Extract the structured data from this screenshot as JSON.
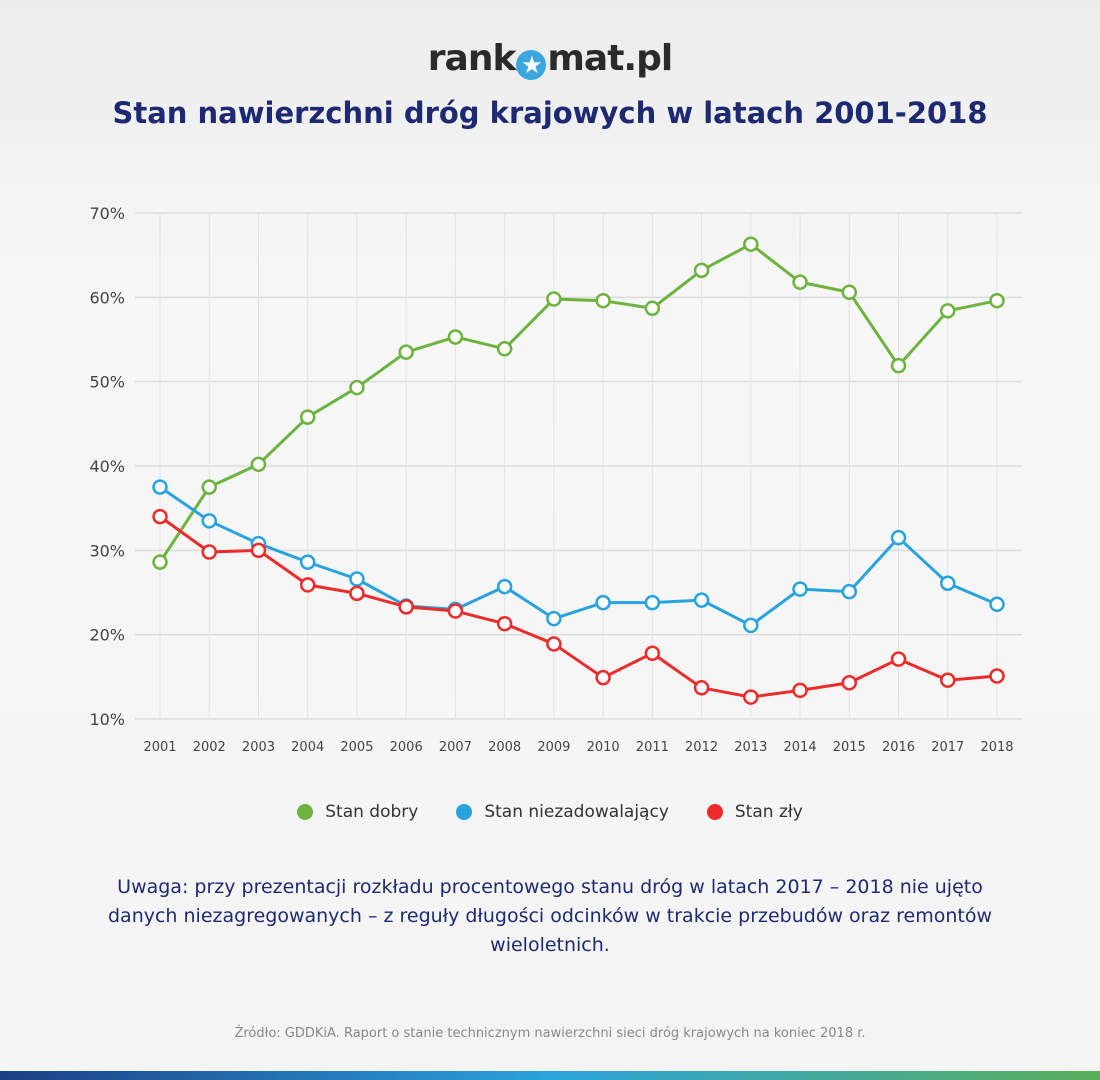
{
  "logo": {
    "text_left": "rank",
    "text_right": "mat.pl",
    "icon": "star-icon",
    "brand_color": "#3aa6dd"
  },
  "chart_data": {
    "type": "line",
    "title": "Stan nawierzchni dróg krajowych w latach 2001-2018",
    "x": [
      "2001",
      "2002",
      "2003",
      "2004",
      "2005",
      "2006",
      "2007",
      "2008",
      "2009",
      "2010",
      "2011",
      "2012",
      "2013",
      "2014",
      "2015",
      "2016",
      "2017",
      "2018"
    ],
    "ylim": [
      10,
      70
    ],
    "yticks": [
      10,
      20,
      30,
      40,
      50,
      60,
      70
    ],
    "ytick_labels": [
      "10%",
      "20%",
      "30%",
      "40%",
      "50%",
      "60%",
      "70%"
    ],
    "grid": true,
    "legend_placement": "bottom",
    "series": [
      {
        "name": "Stan dobry",
        "color": "#6db33f",
        "values": [
          28.6,
          37.5,
          40.2,
          45.8,
          49.3,
          53.5,
          55.3,
          53.9,
          59.8,
          59.6,
          58.7,
          63.2,
          66.3,
          61.8,
          60.6,
          51.9,
          58.4,
          59.6
        ]
      },
      {
        "name": "Stan niezadowalający",
        "color": "#29a3dd",
        "values": [
          37.5,
          33.5,
          30.8,
          28.6,
          26.6,
          23.4,
          23.0,
          25.7,
          21.9,
          23.8,
          23.8,
          24.1,
          21.1,
          25.4,
          25.1,
          31.5,
          26.1,
          23.6
        ]
      },
      {
        "name": "Stan zły",
        "color": "#ee2b2b",
        "values": [
          34.0,
          29.8,
          30.0,
          25.9,
          24.9,
          23.3,
          22.8,
          21.3,
          18.9,
          14.9,
          17.8,
          13.7,
          12.6,
          13.4,
          14.3,
          17.1,
          14.6,
          15.1
        ]
      }
    ]
  },
  "note": "Uwaga: przy prezentacji rozkładu procentowego stanu dróg w latach 2017 – 2018 nie ujęto danych niezagregowanych – z reguły długości odcinków w trakcie przebudów oraz remontów wieloletnich.",
  "source": "Źródło: GDDKiA. Raport o stanie technicznym nawierzchni sieci dróg krajowych na koniec 2018 r."
}
